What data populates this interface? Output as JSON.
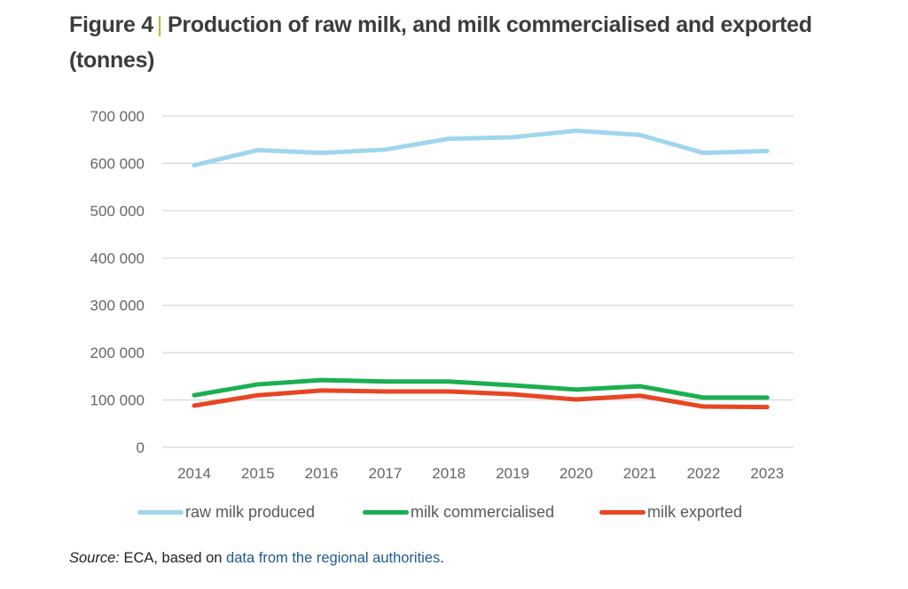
{
  "figure": {
    "label": "Figure 4",
    "separator": "|",
    "title_line1": "Production of raw milk, and milk commercialised and exported",
    "title_line2": "(tonnes)"
  },
  "source": {
    "label": "Source:",
    "text": " ECA, based on ",
    "link_text": "data from the regional authorities",
    "trailing": "."
  },
  "chart_data": {
    "type": "line",
    "title": "Production of raw milk, and milk commercialised and exported (tonnes)",
    "xlabel": "",
    "ylabel": "tonnes",
    "x": [
      "2014",
      "2015",
      "2016",
      "2017",
      "2018",
      "2019",
      "2020",
      "2021",
      "2022",
      "2023"
    ],
    "ylim": [
      0,
      700000
    ],
    "yticks": [
      0,
      100000,
      200000,
      300000,
      400000,
      500000,
      600000,
      700000
    ],
    "ytick_labels": [
      "0",
      "100 000",
      "200 000",
      "300 000",
      "400 000",
      "500 000",
      "600 000",
      "700 000"
    ],
    "grid": true,
    "legend_position": "bottom",
    "series": [
      {
        "name": "raw milk produced",
        "color": "#9fd6ec",
        "values": [
          596000,
          628000,
          622000,
          629000,
          652000,
          655000,
          669000,
          660000,
          622000,
          626000
        ]
      },
      {
        "name": "milk commercialised",
        "color": "#1aaf50",
        "values": [
          110000,
          133000,
          142000,
          139000,
          139000,
          131000,
          122000,
          129000,
          105000,
          105000
        ]
      },
      {
        "name": "milk exported",
        "color": "#e84523",
        "values": [
          88000,
          110000,
          120000,
          118000,
          118000,
          112000,
          101000,
          109000,
          86000,
          85000
        ]
      }
    ]
  }
}
